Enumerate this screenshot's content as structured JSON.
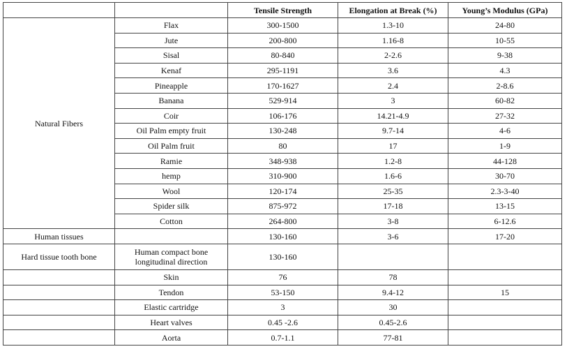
{
  "table": {
    "columns": [
      "Tensile Strength",
      "Elongation at Break (%)",
      "Young’s Modulus (GPa)"
    ],
    "groups": [
      {
        "label": "Natural Fibers",
        "rows": [
          {
            "material": "Flax",
            "tensile": "300-1500",
            "elongation": "1.3-10",
            "modulus": "24-80"
          },
          {
            "material": "Jute",
            "tensile": "200-800",
            "elongation": "1.16-8",
            "modulus": "10-55"
          },
          {
            "material": "Sisal",
            "tensile": "80-840",
            "elongation": "2-2.6",
            "modulus": "9-38"
          },
          {
            "material": "Kenaf",
            "tensile": "295-1191",
            "elongation": "3.6",
            "modulus": "4.3"
          },
          {
            "material": "Pineapple",
            "tensile": "170-1627",
            "elongation": "2.4",
            "modulus": "2-8.6"
          },
          {
            "material": "Banana",
            "tensile": "529-914",
            "elongation": "3",
            "modulus": "60-82"
          },
          {
            "material": "Coir",
            "tensile": "106-176",
            "elongation": "14.21-4.9",
            "modulus": "27-32"
          },
          {
            "material": "Oil Palm empty fruit",
            "tensile": "130-248",
            "elongation": "9.7-14",
            "modulus": "4-6"
          },
          {
            "material": "Oil Palm fruit",
            "tensile": "80",
            "elongation": "17",
            "modulus": "1-9"
          },
          {
            "material": "Ramie",
            "tensile": "348-938",
            "elongation": "1.2-8",
            "modulus": "44-128"
          },
          {
            "material": "hemp",
            "tensile": "310-900",
            "elongation": "1.6-6",
            "modulus": "30-70"
          },
          {
            "material": "Wool",
            "tensile": "120-174",
            "elongation": "25-35",
            "modulus": "2.3-3-40"
          },
          {
            "material": "Spider silk",
            "tensile": "875-972",
            "elongation": "17-18",
            "modulus": "13-15"
          },
          {
            "material": "Cotton",
            "tensile": "264-800",
            "elongation": "3-8",
            "modulus": "6-12.6"
          }
        ]
      },
      {
        "label": "Human tissues",
        "rows": [
          {
            "tensile": "130-160",
            "elongation": "3-6",
            "modulus": "17-20"
          }
        ]
      },
      {
        "label": "Hard tissue tooth bone",
        "rows": [
          {
            "material": "Human compact bone longitudinal direction",
            "tensile": "130-160"
          }
        ]
      },
      {
        "rows": [
          {
            "material": "Skin",
            "tensile": "76",
            "elongation": "78"
          },
          {
            "material": "Tendon",
            "tensile": "53-150",
            "elongation": "9.4-12",
            "modulus": "15"
          },
          {
            "material": "Elastic cartridge",
            "tensile": "3",
            "elongation": "30"
          },
          {
            "material": "Heart valves",
            "tensile": "0.45 -2.6",
            "elongation": "0.45-2.6"
          },
          {
            "material": "Aorta",
            "tensile": "0.7-1.1",
            "elongation": "77-81"
          }
        ]
      }
    ]
  }
}
